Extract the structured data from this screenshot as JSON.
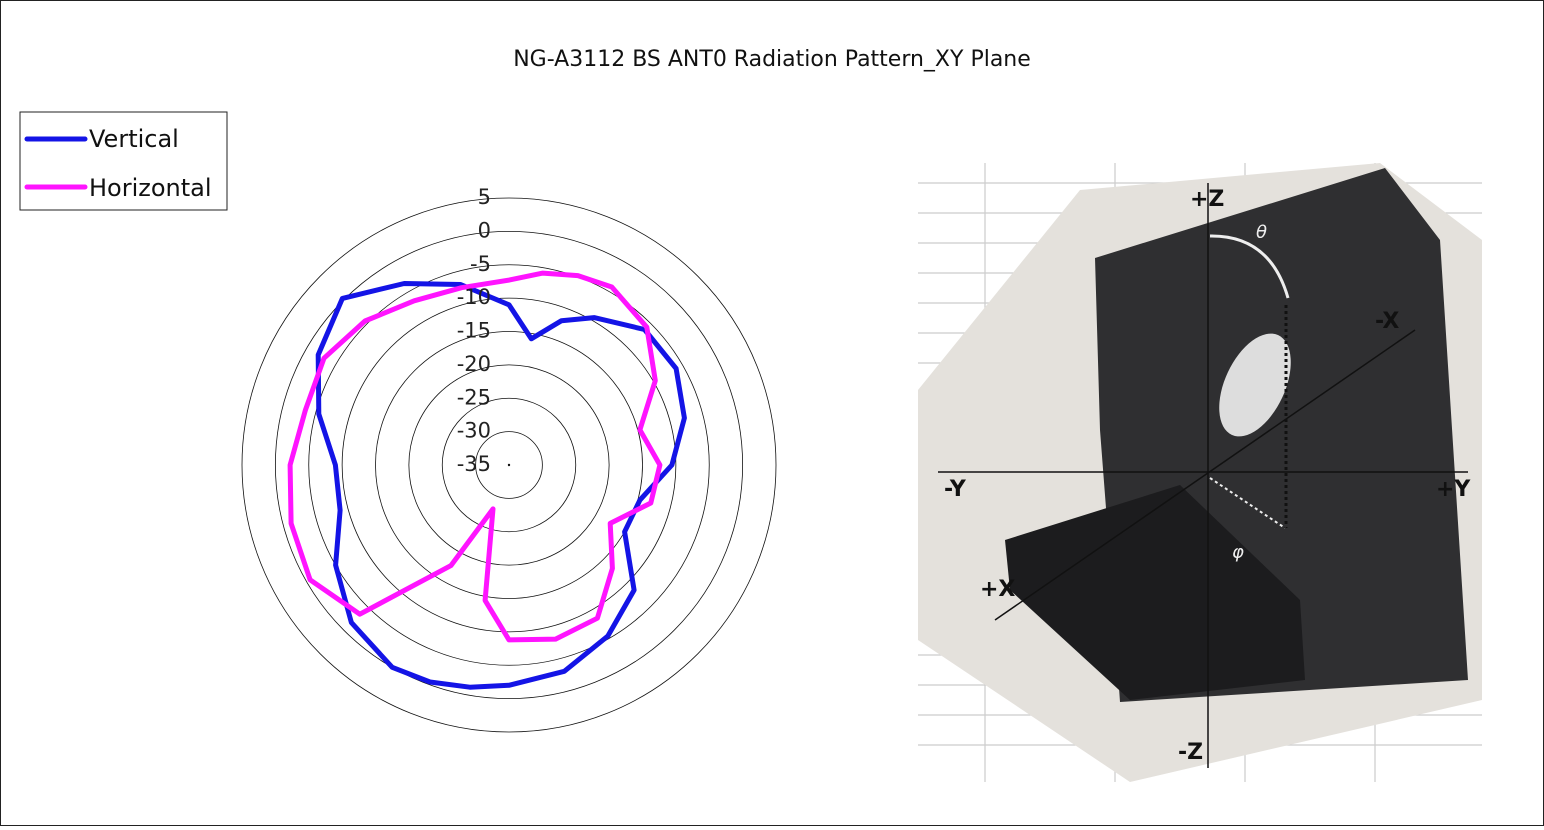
{
  "chart_data": {
    "type": "polar",
    "title": "NG-A3112 BS ANT0 Radiation Pattern_XY Plane",
    "x": [
      0,
      10,
      20,
      30,
      45,
      60,
      75,
      90,
      105,
      120,
      135,
      150,
      165,
      180,
      190,
      200,
      210,
      225,
      240,
      255,
      270,
      285,
      300,
      315,
      330,
      345
    ],
    "xlim": [
      0,
      360
    ],
    "series": [
      {
        "name": "Vertical",
        "color": "#1414e6",
        "values": [
          -11,
          -15.8,
          -12,
          -9.5,
          -6.3,
          -6.1,
          -7.8,
          -10.6,
          -14.7,
          -15,
          -8.5,
          -5.4,
          -3,
          -2,
          -1.2,
          -0.4,
          0,
          -1.6,
          -5,
          -8.8,
          -9,
          -5.5,
          -2,
          0.3,
          -3.6,
          -7
        ]
      },
      {
        "name": "Horizontal",
        "color": "#ff14ff",
        "values": [
          -7.3,
          -5.8,
          -4.8,
          -4.2,
          -5.8,
          -9.7,
          -14.7,
          -12.4,
          -13,
          -17.5,
          -13.1,
          -8.5,
          -8,
          -8.8,
          -14.4,
          -28,
          -17.6,
          -3.4,
          -0.6,
          -1.2,
          -2.2,
          -3.4,
          -3,
          -4.5,
          -6.6,
          -7.5
        ]
      }
    ],
    "ylim": [
      -35,
      5
    ],
    "yticks": [
      5,
      0,
      -5,
      -10,
      -15,
      -20,
      -25,
      -30,
      -35
    ],
    "grid": true,
    "legend": "top-left"
  },
  "photo_labels": [
    "+Z",
    "-Z",
    "-Y",
    "+Y",
    "+X",
    "-X",
    "θ",
    "φ"
  ]
}
